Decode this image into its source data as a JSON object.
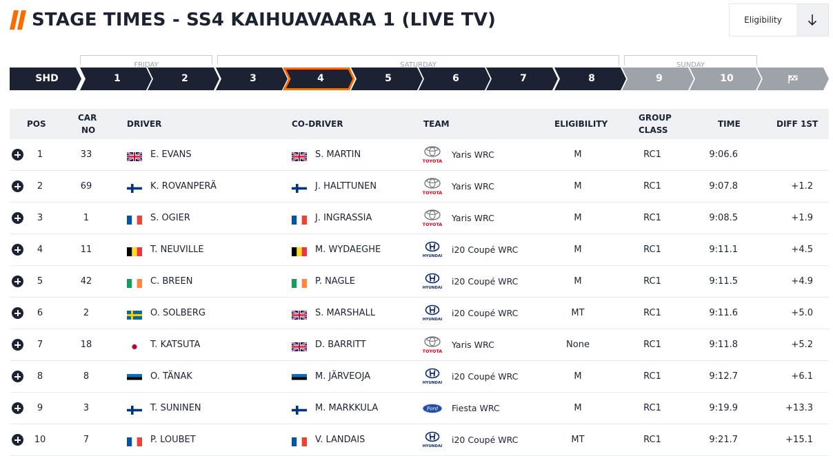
{
  "header": {
    "title": "STAGE TIMES - SS4 KAIHUAVAARA 1 (LIVE TV)",
    "filter_label": "Eligibility",
    "accent_color": "#ff6b00",
    "navy_color": "#1c2232"
  },
  "days": [
    {
      "label": "FRIDAY"
    },
    {
      "label": "SATURDAY"
    },
    {
      "label": "SUNDAY"
    }
  ],
  "stages": [
    {
      "label": "SHD",
      "state": "completed"
    },
    {
      "label": "1",
      "state": "completed"
    },
    {
      "label": "2",
      "state": "completed"
    },
    {
      "label": "3",
      "state": "completed"
    },
    {
      "label": "4",
      "state": "active"
    },
    {
      "label": "5",
      "state": "completed"
    },
    {
      "label": "6",
      "state": "completed"
    },
    {
      "label": "7",
      "state": "completed"
    },
    {
      "label": "8",
      "state": "completed"
    },
    {
      "label": "9",
      "state": "upcoming"
    },
    {
      "label": "10",
      "state": "upcoming"
    },
    {
      "label": "",
      "state": "finish",
      "icon": "checkered-flag-icon"
    }
  ],
  "table": {
    "columns": {
      "pos": "POS",
      "car_no_1": "CAR",
      "car_no_2": "NO",
      "driver": "DRIVER",
      "co_driver": "CO-DRIVER",
      "team": "TEAM",
      "eligibility": "ELIGIBILITY",
      "group_1": "GROUP",
      "group_2": "CLASS",
      "time": "TIME",
      "diff": "DIFF 1ST"
    },
    "rows": [
      {
        "pos": "1",
        "car": "33",
        "driver": "E. EVANS",
        "driver_flag": "gb",
        "co_driver": "S. MARTIN",
        "co_flag": "gb",
        "brand": "toyota",
        "team": "Yaris WRC",
        "eligibility": "M",
        "class": "RC1",
        "time": "9:06.6",
        "diff": ""
      },
      {
        "pos": "2",
        "car": "69",
        "driver": "K. ROVANPERÄ",
        "driver_flag": "fi",
        "co_driver": "J. HALTTUNEN",
        "co_flag": "fi",
        "brand": "toyota",
        "team": "Yaris WRC",
        "eligibility": "M",
        "class": "RC1",
        "time": "9:07.8",
        "diff": "+1.2"
      },
      {
        "pos": "3",
        "car": "1",
        "driver": "S. OGIER",
        "driver_flag": "fr",
        "co_driver": "J. INGRASSIA",
        "co_flag": "fr",
        "brand": "toyota",
        "team": "Yaris WRC",
        "eligibility": "M",
        "class": "RC1",
        "time": "9:08.5",
        "diff": "+1.9"
      },
      {
        "pos": "4",
        "car": "11",
        "driver": "T. NEUVILLE",
        "driver_flag": "be",
        "co_driver": "M. WYDAEGHE",
        "co_flag": "be",
        "brand": "hyundai",
        "team": "i20 Coupé WRC",
        "eligibility": "M",
        "class": "RC1",
        "time": "9:11.1",
        "diff": "+4.5"
      },
      {
        "pos": "5",
        "car": "42",
        "driver": "C. BREEN",
        "driver_flag": "ie",
        "co_driver": "P. NAGLE",
        "co_flag": "ie",
        "brand": "hyundai",
        "team": "i20 Coupé WRC",
        "eligibility": "M",
        "class": "RC1",
        "time": "9:11.5",
        "diff": "+4.9"
      },
      {
        "pos": "6",
        "car": "2",
        "driver": "O. SOLBERG",
        "driver_flag": "se",
        "co_driver": "S. MARSHALL",
        "co_flag": "gb",
        "brand": "hyundai",
        "team": "i20 Coupé WRC",
        "eligibility": "MT",
        "class": "RC1",
        "time": "9:11.6",
        "diff": "+5.0"
      },
      {
        "pos": "7",
        "car": "18",
        "driver": "T. KATSUTA",
        "driver_flag": "jp",
        "co_driver": "D. BARRITT",
        "co_flag": "gb",
        "brand": "toyota",
        "team": "Yaris WRC",
        "eligibility": "None",
        "class": "RC1",
        "time": "9:11.8",
        "diff": "+5.2"
      },
      {
        "pos": "8",
        "car": "8",
        "driver": "O. TÄNAK",
        "driver_flag": "ee",
        "co_driver": "M. JÄRVEOJA",
        "co_flag": "ee",
        "brand": "hyundai",
        "team": "i20 Coupé WRC",
        "eligibility": "M",
        "class": "RC1",
        "time": "9:12.7",
        "diff": "+6.1"
      },
      {
        "pos": "9",
        "car": "3",
        "driver": "T. SUNINEN",
        "driver_flag": "fi",
        "co_driver": "M. MARKKULA",
        "co_flag": "fi",
        "brand": "ford",
        "team": "Fiesta WRC",
        "eligibility": "M",
        "class": "RC1",
        "time": "9:19.9",
        "diff": "+13.3"
      },
      {
        "pos": "10",
        "car": "7",
        "driver": "P. LOUBET",
        "driver_flag": "fr",
        "co_driver": "V. LANDAIS",
        "co_flag": "fr",
        "brand": "hyundai",
        "team": "i20 Coupé WRC",
        "eligibility": "MT",
        "class": "RC1",
        "time": "9:21.7",
        "diff": "+15.1"
      }
    ]
  }
}
